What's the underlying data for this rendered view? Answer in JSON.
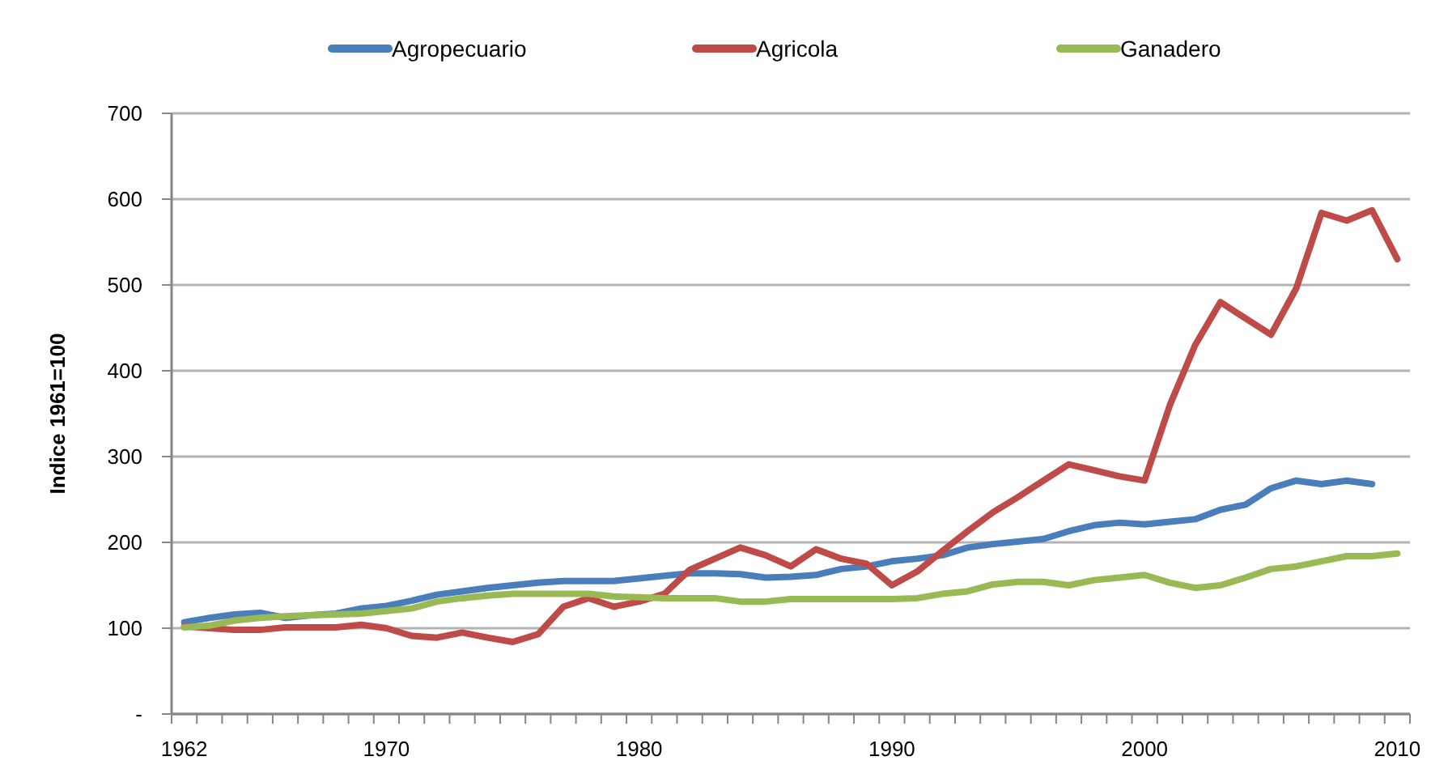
{
  "chart_data": {
    "type": "line",
    "ylabel": "Indice 1961=100",
    "categories": [
      "1962",
      null,
      null,
      null,
      null,
      null,
      null,
      null,
      "1970",
      null,
      null,
      null,
      null,
      null,
      null,
      null,
      null,
      null,
      "1980",
      null,
      null,
      null,
      null,
      null,
      null,
      null,
      null,
      null,
      "1990",
      null,
      null,
      null,
      null,
      null,
      null,
      null,
      null,
      null,
      "2000",
      null,
      null,
      null,
      null,
      null,
      null,
      null,
      null,
      null,
      "2010"
    ],
    "ylim": [
      0,
      700
    ],
    "yticks": [
      {
        "value": 0,
        "label": "-"
      },
      100,
      200,
      300,
      400,
      500,
      600,
      700
    ],
    "grid": "y",
    "legend": "top",
    "line_style": "solid",
    "series": [
      {
        "name": "Agropecuario",
        "color": "#4a7ebb",
        "values": [
          107,
          112,
          116,
          118,
          112,
          115,
          117,
          123,
          126,
          132,
          139,
          143,
          147,
          150,
          153,
          155,
          155,
          155,
          158,
          161,
          164,
          164,
          163,
          159,
          160,
          162,
          169,
          172,
          178,
          181,
          185,
          194,
          198,
          201,
          204,
          213,
          220,
          223,
          221,
          224,
          227,
          238,
          244,
          263,
          272,
          268,
          272,
          268,
          null
        ]
      },
      {
        "name": "Agricola",
        "color": "#be4b48",
        "values": [
          102,
          100,
          98,
          98,
          101,
          101,
          101,
          104,
          100,
          91,
          89,
          95,
          89,
          84,
          93,
          125,
          135,
          125,
          131,
          140,
          168,
          181,
          194,
          185,
          172,
          192,
          181,
          175,
          150,
          166,
          190,
          213,
          235,
          253,
          272,
          291,
          284,
          277,
          272,
          360,
          430,
          480,
          461,
          442,
          496,
          584,
          575,
          587,
          530
        ]
      },
      {
        "name": "Ganadero",
        "color": "#98b954",
        "values": [
          101,
          103,
          109,
          112,
          114,
          115,
          116,
          117,
          120,
          123,
          131,
          135,
          138,
          140,
          140,
          140,
          140,
          137,
          136,
          135,
          135,
          135,
          131,
          131,
          134,
          134,
          134,
          134,
          134,
          135,
          140,
          143,
          151,
          154,
          154,
          150,
          156,
          159,
          162,
          153,
          147,
          150,
          159,
          169,
          172,
          178,
          184,
          184,
          187
        ]
      }
    ]
  }
}
